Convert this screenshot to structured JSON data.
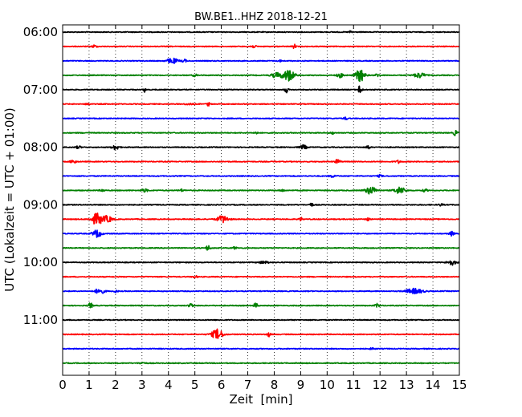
{
  "chart_data": {
    "type": "line",
    "title": "BW.BE1..HHZ 2018-12-21",
    "xlabel": "Zeit  [min]",
    "ylabel": "UTC (Lokalzeit = UTC + 01:00)",
    "xlim": [
      0,
      15
    ],
    "x_ticks": [
      0,
      1,
      2,
      3,
      4,
      5,
      6,
      7,
      8,
      9,
      10,
      11,
      12,
      13,
      14,
      15
    ],
    "y_tick_labels": [
      "06:00",
      "07:00",
      "08:00",
      "09:00",
      "10:00",
      "11:00"
    ],
    "grid": "vertical dotted at each minute",
    "trace_interval_min": 15,
    "start_time": "06:00",
    "color_cycle": [
      "#000000",
      "#ff0000",
      "#0000ff",
      "#008000"
    ],
    "series": [
      {
        "time": "06:00",
        "events": [
          {
            "t": 10.9,
            "amp": 0.15,
            "dur": 0.2
          }
        ]
      },
      {
        "time": "06:15",
        "events": [
          {
            "t": 1.2,
            "amp": 0.2,
            "dur": 0.2
          },
          {
            "t": 7.2,
            "amp": 0.15,
            "dur": 0.3
          },
          {
            "t": 8.75,
            "amp": 0.3,
            "dur": 0.15
          }
        ]
      },
      {
        "time": "06:30",
        "events": [
          {
            "t": 4.15,
            "amp": 0.35,
            "dur": 0.5
          },
          {
            "t": 4.6,
            "amp": 0.3,
            "dur": 0.15
          },
          {
            "t": 8.2,
            "amp": 0.15,
            "dur": 0.15
          }
        ]
      },
      {
        "time": "06:45",
        "events": [
          {
            "t": 8.1,
            "amp": 0.35,
            "dur": 0.5
          },
          {
            "t": 8.55,
            "amp": 0.8,
            "dur": 0.5
          },
          {
            "t": 10.5,
            "amp": 0.3,
            "dur": 0.3
          },
          {
            "t": 11.25,
            "amp": 0.9,
            "dur": 0.4
          },
          {
            "t": 13.5,
            "amp": 0.35,
            "dur": 0.5
          },
          {
            "t": 11.9,
            "amp": 0.2,
            "dur": 0.2
          },
          {
            "t": 5.0,
            "amp": 0.15,
            "dur": 0.2
          }
        ]
      },
      {
        "time": "07:00",
        "events": [
          {
            "t": 3.1,
            "amp": 0.35,
            "dur": 0.1
          },
          {
            "t": 8.45,
            "amp": 0.45,
            "dur": 0.15
          },
          {
            "t": 11.25,
            "amp": 0.8,
            "dur": 0.15
          }
        ]
      },
      {
        "time": "07:15",
        "events": [
          {
            "t": 0.95,
            "amp": 0.2,
            "dur": 0.15
          },
          {
            "t": 5.5,
            "amp": 0.25,
            "dur": 0.15
          },
          {
            "t": 4.8,
            "amp": 0.1,
            "dur": 0.4
          }
        ]
      },
      {
        "time": "07:30",
        "events": [
          {
            "t": 10.7,
            "amp": 0.15,
            "dur": 0.2
          }
        ]
      },
      {
        "time": "07:45",
        "events": [
          {
            "t": 7.3,
            "amp": 0.2,
            "dur": 0.15
          },
          {
            "t": 14.85,
            "amp": 0.35,
            "dur": 0.2
          },
          {
            "t": 10.2,
            "amp": 0.15,
            "dur": 0.2
          }
        ]
      },
      {
        "time": "08:00",
        "events": [
          {
            "t": 0.6,
            "amp": 0.2,
            "dur": 0.2
          },
          {
            "t": 2.0,
            "amp": 0.35,
            "dur": 0.3
          },
          {
            "t": 9.1,
            "amp": 0.3,
            "dur": 0.3
          },
          {
            "t": 11.55,
            "amp": 0.3,
            "dur": 0.15
          }
        ]
      },
      {
        "time": "08:15",
        "events": [
          {
            "t": 0.4,
            "amp": 0.25,
            "dur": 0.25
          },
          {
            "t": 10.4,
            "amp": 0.35,
            "dur": 0.2
          },
          {
            "t": 12.7,
            "amp": 0.2,
            "dur": 0.2
          }
        ]
      },
      {
        "time": "08:30",
        "events": [
          {
            "t": 10.2,
            "amp": 0.15,
            "dur": 0.3
          },
          {
            "t": 12.0,
            "amp": 0.15,
            "dur": 0.2
          }
        ]
      },
      {
        "time": "08:45",
        "events": [
          {
            "t": 1.5,
            "amp": 0.15,
            "dur": 0.2
          },
          {
            "t": 3.1,
            "amp": 0.2,
            "dur": 0.3
          },
          {
            "t": 11.65,
            "amp": 0.5,
            "dur": 0.5
          },
          {
            "t": 12.75,
            "amp": 0.45,
            "dur": 0.5
          },
          {
            "t": 13.7,
            "amp": 0.2,
            "dur": 0.2
          },
          {
            "t": 8.3,
            "amp": 0.15,
            "dur": 0.2
          },
          {
            "t": 4.5,
            "amp": 0.15,
            "dur": 0.2
          }
        ]
      },
      {
        "time": "09:00",
        "events": [
          {
            "t": 9.4,
            "amp": 0.3,
            "dur": 0.15
          },
          {
            "t": 14.3,
            "amp": 0.15,
            "dur": 0.2
          }
        ]
      },
      {
        "time": "09:15",
        "events": [
          {
            "t": 1.3,
            "amp": 0.8,
            "dur": 0.5
          },
          {
            "t": 1.7,
            "amp": 0.45,
            "dur": 0.4
          },
          {
            "t": 6.05,
            "amp": 0.5,
            "dur": 0.5
          },
          {
            "t": 9.0,
            "amp": 0.25,
            "dur": 0.15
          },
          {
            "t": 11.55,
            "amp": 0.25,
            "dur": 0.15
          }
        ]
      },
      {
        "time": "09:30",
        "events": [
          {
            "t": 1.3,
            "amp": 0.5,
            "dur": 0.4
          },
          {
            "t": 14.7,
            "amp": 0.3,
            "dur": 0.2
          }
        ]
      },
      {
        "time": "09:45",
        "events": [
          {
            "t": 5.5,
            "amp": 0.35,
            "dur": 0.2
          },
          {
            "t": 6.5,
            "amp": 0.15,
            "dur": 0.2
          }
        ]
      },
      {
        "time": "10:00",
        "events": [
          {
            "t": 7.6,
            "amp": 0.15,
            "dur": 0.5
          },
          {
            "t": 14.7,
            "amp": 0.35,
            "dur": 0.4
          }
        ]
      },
      {
        "time": "10:15",
        "events": [
          {
            "t": 5.0,
            "amp": 0.15,
            "dur": 0.2
          }
        ]
      },
      {
        "time": "10:30",
        "events": [
          {
            "t": 1.4,
            "amp": 0.4,
            "dur": 0.4
          },
          {
            "t": 13.3,
            "amp": 0.35,
            "dur": 0.8
          },
          {
            "t": 2.0,
            "amp": 0.15,
            "dur": 0.2
          }
        ]
      },
      {
        "time": "10:45",
        "events": [
          {
            "t": 1.05,
            "amp": 0.35,
            "dur": 0.2
          },
          {
            "t": 4.85,
            "amp": 0.3,
            "dur": 0.2
          },
          {
            "t": 7.3,
            "amp": 0.3,
            "dur": 0.2
          },
          {
            "t": 11.9,
            "amp": 0.25,
            "dur": 0.2
          }
        ]
      },
      {
        "time": "11:00",
        "events": []
      },
      {
        "time": "11:15",
        "events": [
          {
            "t": 5.85,
            "amp": 0.7,
            "dur": 0.5
          },
          {
            "t": 7.8,
            "amp": 0.3,
            "dur": 0.15
          }
        ]
      },
      {
        "time": "11:30",
        "events": [
          {
            "t": 11.7,
            "amp": 0.12,
            "dur": 0.2
          }
        ]
      },
      {
        "time": "11:45",
        "events": [
          {
            "t": 3.0,
            "amp": 0.1,
            "dur": 0.3
          }
        ]
      }
    ]
  }
}
